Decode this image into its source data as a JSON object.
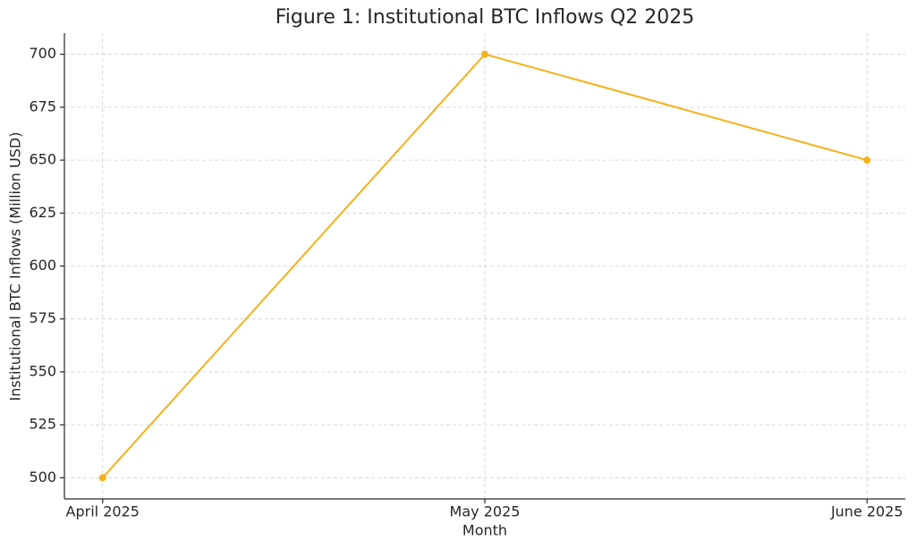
{
  "chart_data": {
    "type": "line",
    "title": "Figure 1: Institutional BTC Inflows Q2 2025",
    "x_label": "Month",
    "y_label": "Institutional BTC Inflows (Million USD)",
    "categories": [
      "April 2025",
      "May 2025",
      "June 2025"
    ],
    "values": [
      500,
      700,
      650
    ],
    "color": "#f7b019",
    "ylim": [
      490,
      710
    ],
    "yticks": [
      500,
      525,
      550,
      575,
      600,
      625,
      650,
      675,
      700
    ],
    "grid": true
  }
}
